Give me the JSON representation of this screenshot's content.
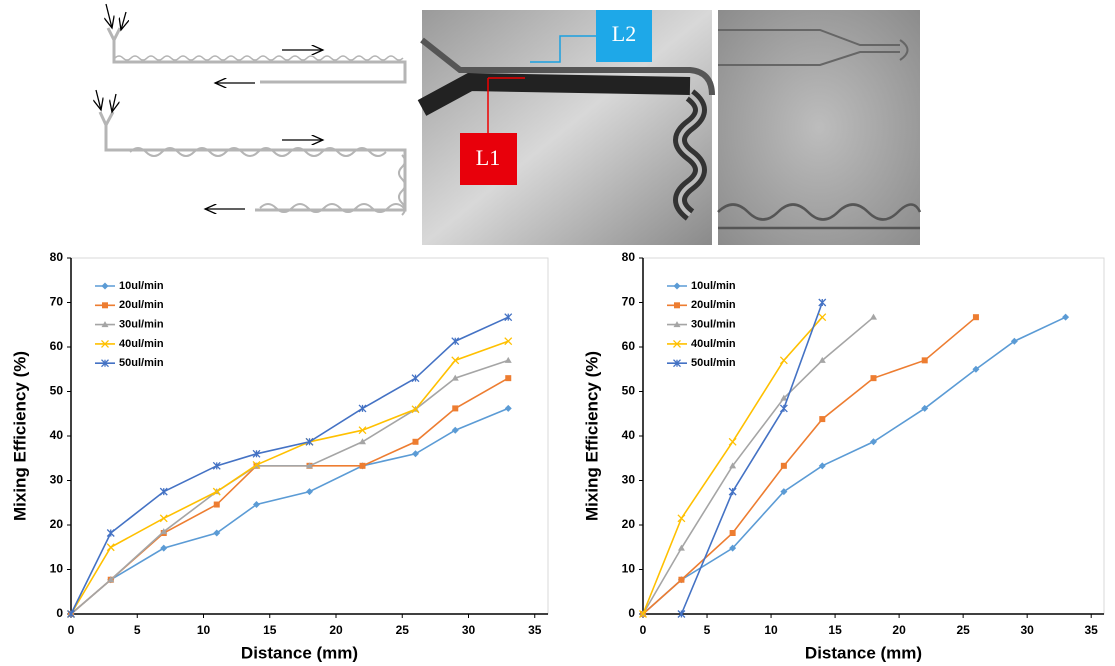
{
  "images": {
    "labels": [
      "L1",
      "L2"
    ]
  },
  "chart_data": [
    {
      "type": "line",
      "x_label": "Distance (mm)",
      "y_label": "Mixing Efficiency (%)",
      "x": [
        0,
        3,
        7,
        11,
        14,
        18,
        22,
        26,
        29,
        33
      ],
      "series": [
        {
          "name": "10ul/min",
          "color": "#5b9bd5",
          "marker": "diamond",
          "values": [
            0,
            7.7,
            14.8,
            18.2,
            24.6,
            27.5,
            33.3,
            36,
            41.3,
            46.2
          ]
        },
        {
          "name": "20ul/min",
          "color": "#ed7d31",
          "marker": "square",
          "values": [
            0,
            7.7,
            18.2,
            24.6,
            33.3,
            33.3,
            33.3,
            38.7,
            46.2,
            53
          ]
        },
        {
          "name": "30ul/min",
          "color": "#a5a5a5",
          "marker": "triangle",
          "values": [
            0,
            7.7,
            18.5,
            27.5,
            33.3,
            33.3,
            38.7,
            46,
            53,
            57
          ]
        },
        {
          "name": "40ul/min",
          "color": "#ffc000",
          "marker": "cross",
          "values": [
            0,
            15,
            21.5,
            27.5,
            33.5,
            38.7,
            41.3,
            46,
            57,
            61.3
          ]
        },
        {
          "name": "50ul/min",
          "color": "#4472c4",
          "marker": "star",
          "values": [
            0,
            18.2,
            27.5,
            33.3,
            36,
            38.7,
            46.2,
            53,
            61.3,
            66.7
          ]
        }
      ],
      "xlim": [
        0,
        36
      ],
      "ylim": [
        0,
        80
      ],
      "xticks": [
        0,
        5,
        10,
        15,
        20,
        25,
        30,
        35
      ],
      "yticks": [
        0,
        10,
        20,
        30,
        40,
        50,
        60,
        70,
        80
      ],
      "legend": "upper left",
      "grid": false
    },
    {
      "type": "line",
      "x_label": "Distance (mm)",
      "y_label": "Mixing Efficiency (%)",
      "series": [
        {
          "name": "10ul/min",
          "color": "#5b9bd5",
          "marker": "diamond",
          "x": [
            0,
            3,
            7,
            11,
            14,
            18,
            22,
            26,
            29,
            33
          ],
          "values": [
            0,
            7.7,
            14.8,
            27.5,
            33.3,
            38.7,
            46.2,
            55,
            61.3,
            66.7
          ]
        },
        {
          "name": "20ul/min",
          "color": "#ed7d31",
          "marker": "square",
          "x": [
            0,
            3,
            7,
            11,
            14,
            18,
            22,
            26
          ],
          "values": [
            0,
            7.7,
            18.2,
            33.3,
            43.8,
            53,
            57,
            66.7
          ]
        },
        {
          "name": "30ul/min",
          "color": "#a5a5a5",
          "marker": "triangle",
          "x": [
            0,
            3,
            7,
            11,
            14,
            18
          ],
          "values": [
            0,
            14.8,
            33.3,
            48.5,
            57,
            66.7
          ]
        },
        {
          "name": "40ul/min",
          "color": "#ffc000",
          "marker": "cross",
          "x": [
            0,
            3,
            7,
            11,
            14
          ],
          "values": [
            0,
            21.5,
            38.7,
            57,
            66.7
          ]
        },
        {
          "name": "50ul/min",
          "color": "#4472c4",
          "marker": "star",
          "x": [
            3,
            7,
            11,
            14
          ],
          "values": [
            0,
            27.5,
            46.2,
            70
          ]
        }
      ],
      "xlim": [
        0,
        36
      ],
      "ylim": [
        0,
        80
      ],
      "xticks": [
        0,
        5,
        10,
        15,
        20,
        25,
        30,
        35
      ],
      "yticks": [
        0,
        10,
        20,
        30,
        40,
        50,
        60,
        70,
        80
      ],
      "legend": "upper left",
      "grid": false
    }
  ]
}
